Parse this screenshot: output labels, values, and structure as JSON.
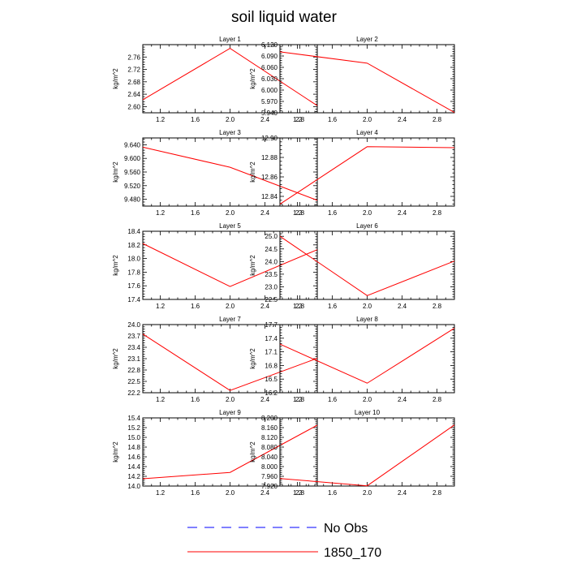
{
  "title": "soil liquid water",
  "colors": {
    "model": "#ff0000",
    "obs": "#0000ff",
    "axis": "#000000"
  },
  "legend": [
    {
      "label": "No Obs",
      "style": "dashed",
      "color": "#0000ff"
    },
    {
      "label": "1850_170",
      "style": "solid",
      "color": "#ff0000"
    }
  ],
  "chart_data": [
    {
      "type": "line",
      "title": "Layer 1",
      "xlabel": "",
      "ylabel": "kg/m^2",
      "xlim": [
        1,
        3
      ],
      "ylim": [
        2.58,
        2.8
      ],
      "xticks": [
        1.2,
        1.6,
        2.0,
        2.4,
        2.8
      ],
      "xtick_labels": [
        "1.2",
        "1.6",
        "2.0",
        "2.4",
        "2.8"
      ],
      "yticks": [
        2.6,
        2.64,
        2.68,
        2.72,
        2.76
      ],
      "ytick_labels": [
        "2.60",
        "2.64",
        "2.68",
        "2.72",
        "2.76"
      ],
      "series": [
        {
          "name": "1850_170",
          "x": [
            1,
            2,
            3
          ],
          "y": [
            2.622,
            2.788,
            2.603
          ]
        }
      ]
    },
    {
      "type": "line",
      "title": "Layer 2",
      "xlabel": "",
      "ylabel": "kg/m^2",
      "xlim": [
        1,
        3
      ],
      "ylim": [
        5.94,
        6.12
      ],
      "xticks": [
        1.2,
        1.6,
        2.0,
        2.4,
        2.8
      ],
      "xtick_labels": [
        "1.2",
        "1.6",
        "2.0",
        "2.4",
        "2.8"
      ],
      "yticks": [
        5.94,
        5.97,
        6.0,
        6.03,
        6.06,
        6.09,
        6.12
      ],
      "ytick_labels": [
        "5.940",
        "5.970",
        "6.000",
        "6.030",
        "6.060",
        "6.090",
        "6.120"
      ],
      "series": [
        {
          "name": "1850_170",
          "x": [
            1,
            2,
            3
          ],
          "y": [
            6.101,
            6.071,
            5.941
          ]
        }
      ]
    },
    {
      "type": "line",
      "title": "Layer 3",
      "xlabel": "",
      "ylabel": "kg/m^2",
      "xlim": [
        1,
        3
      ],
      "ylim": [
        9.46,
        9.66
      ],
      "xticks": [
        1.2,
        1.6,
        2.0,
        2.4,
        2.8
      ],
      "xtick_labels": [
        "1.2",
        "1.6",
        "2.0",
        "2.4",
        "2.8"
      ],
      "yticks": [
        9.48,
        9.52,
        9.56,
        9.6,
        9.64
      ],
      "ytick_labels": [
        "9.480",
        "9.520",
        "9.560",
        "9.600",
        "9.640"
      ],
      "series": [
        {
          "name": "1850_170",
          "x": [
            1,
            2,
            3
          ],
          "y": [
            9.633,
            9.574,
            9.477
          ]
        }
      ]
    },
    {
      "type": "line",
      "title": "Layer 4",
      "xlabel": "",
      "ylabel": "kg/m^2",
      "xlim": [
        1,
        3
      ],
      "ylim": [
        12.83,
        12.9
      ],
      "xticks": [
        1.2,
        1.6,
        2.0,
        2.4,
        2.8
      ],
      "xtick_labels": [
        "1.2",
        "1.6",
        "2.0",
        "2.4",
        "2.8"
      ],
      "yticks": [
        12.84,
        12.86,
        12.88,
        12.9
      ],
      "ytick_labels": [
        "12.84",
        "12.86",
        "12.88",
        "12.90"
      ],
      "series": [
        {
          "name": "1850_170",
          "x": [
            1,
            2,
            3
          ],
          "y": [
            12.832,
            12.891,
            12.89
          ]
        }
      ]
    },
    {
      "type": "line",
      "title": "Layer 5",
      "xlabel": "",
      "ylabel": "kg/m^2",
      "xlim": [
        1,
        3
      ],
      "ylim": [
        17.4,
        18.4
      ],
      "xticks": [
        1.2,
        1.6,
        2.0,
        2.4,
        2.8
      ],
      "xtick_labels": [
        "1.2",
        "1.6",
        "2.0",
        "2.4",
        "2.8"
      ],
      "yticks": [
        17.4,
        17.6,
        17.8,
        18.0,
        18.2,
        18.4
      ],
      "ytick_labels": [
        "17.4",
        "17.6",
        "17.8",
        "18.0",
        "18.2",
        "18.4"
      ],
      "series": [
        {
          "name": "1850_170",
          "x": [
            1,
            2,
            3
          ],
          "y": [
            18.22,
            17.59,
            18.13
          ]
        }
      ]
    },
    {
      "type": "line",
      "title": "Layer 6",
      "xlabel": "",
      "ylabel": "kg/m^2",
      "xlim": [
        1,
        3
      ],
      "ylim": [
        22.5,
        25.2
      ],
      "xticks": [
        1.2,
        1.6,
        2.0,
        2.4,
        2.8
      ],
      "xtick_labels": [
        "1.2",
        "1.6",
        "2.0",
        "2.4",
        "2.8"
      ],
      "yticks": [
        22.5,
        23.0,
        23.5,
        24.0,
        24.5,
        25.0
      ],
      "ytick_labels": [
        "22.5",
        "23.0",
        "23.5",
        "24.0",
        "24.5",
        "25.0"
      ],
      "series": [
        {
          "name": "1850_170",
          "x": [
            1,
            2,
            3
          ],
          "y": [
            25.0,
            22.65,
            24.02
          ]
        }
      ]
    },
    {
      "type": "line",
      "title": "Layer 7",
      "xlabel": "",
      "ylabel": "kg/m^2",
      "xlim": [
        1,
        3
      ],
      "ylim": [
        22.2,
        24.0
      ],
      "xticks": [
        1.2,
        1.6,
        2.0,
        2.4,
        2.8
      ],
      "xtick_labels": [
        "1.2",
        "1.6",
        "2.0",
        "2.4",
        "2.8"
      ],
      "yticks": [
        22.2,
        22.5,
        22.8,
        23.1,
        23.4,
        23.7,
        24.0
      ],
      "ytick_labels": [
        "22.2",
        "22.5",
        "22.8",
        "23.1",
        "23.4",
        "23.7",
        "24.0"
      ],
      "series": [
        {
          "name": "1850_170",
          "x": [
            1,
            2,
            3
          ],
          "y": [
            23.75,
            22.26,
            23.11
          ]
        }
      ]
    },
    {
      "type": "line",
      "title": "Layer 8",
      "xlabel": "",
      "ylabel": "kg/m^2",
      "xlim": [
        1,
        3
      ],
      "ylim": [
        16.2,
        17.7
      ],
      "xticks": [
        1.2,
        1.6,
        2.0,
        2.4,
        2.8
      ],
      "xtick_labels": [
        "1.2",
        "1.6",
        "2.0",
        "2.4",
        "2.8"
      ],
      "yticks": [
        16.2,
        16.5,
        16.8,
        17.1,
        17.4,
        17.7
      ],
      "ytick_labels": [
        "16.2",
        "16.5",
        "16.8",
        "17.1",
        "17.4",
        "17.7"
      ],
      "series": [
        {
          "name": "1850_170",
          "x": [
            1,
            2,
            3
          ],
          "y": [
            17.27,
            16.41,
            17.62
          ]
        }
      ]
    },
    {
      "type": "line",
      "title": "Layer 9",
      "xlabel": "",
      "ylabel": "kg/m^2",
      "xlim": [
        1,
        3
      ],
      "ylim": [
        14.0,
        15.4
      ],
      "xticks": [
        1.2,
        1.6,
        2.0,
        2.4,
        2.8
      ],
      "xtick_labels": [
        "1.2",
        "1.6",
        "2.0",
        "2.4",
        "2.8"
      ],
      "yticks": [
        14.0,
        14.2,
        14.4,
        14.6,
        14.8,
        15.0,
        15.2,
        15.4
      ],
      "ytick_labels": [
        "14.0",
        "14.2",
        "14.4",
        "14.6",
        "14.8",
        "15.0",
        "15.2",
        "15.4"
      ],
      "series": [
        {
          "name": "1850_170",
          "x": [
            1,
            2,
            3
          ],
          "y": [
            14.15,
            14.28,
            15.25
          ]
        }
      ]
    },
    {
      "type": "line",
      "title": "Layer 10",
      "xlabel": "",
      "ylabel": "kg/m^2",
      "xlim": [
        1,
        3
      ],
      "ylim": [
        7.92,
        8.2
      ],
      "xticks": [
        1.2,
        1.6,
        2.0,
        2.4,
        2.8
      ],
      "xtick_labels": [
        "1.2",
        "1.6",
        "2.0",
        "2.4",
        "2.8"
      ],
      "yticks": [
        7.92,
        7.96,
        8.0,
        8.04,
        8.08,
        8.12,
        8.16,
        8.2
      ],
      "ytick_labels": [
        "7.920",
        "7.960",
        "8.000",
        "8.040",
        "8.080",
        "8.120",
        "8.160",
        "8.200"
      ],
      "series": [
        {
          "name": "1850_170",
          "x": [
            1,
            2,
            3
          ],
          "y": [
            7.951,
            7.921,
            8.171
          ]
        }
      ]
    }
  ]
}
